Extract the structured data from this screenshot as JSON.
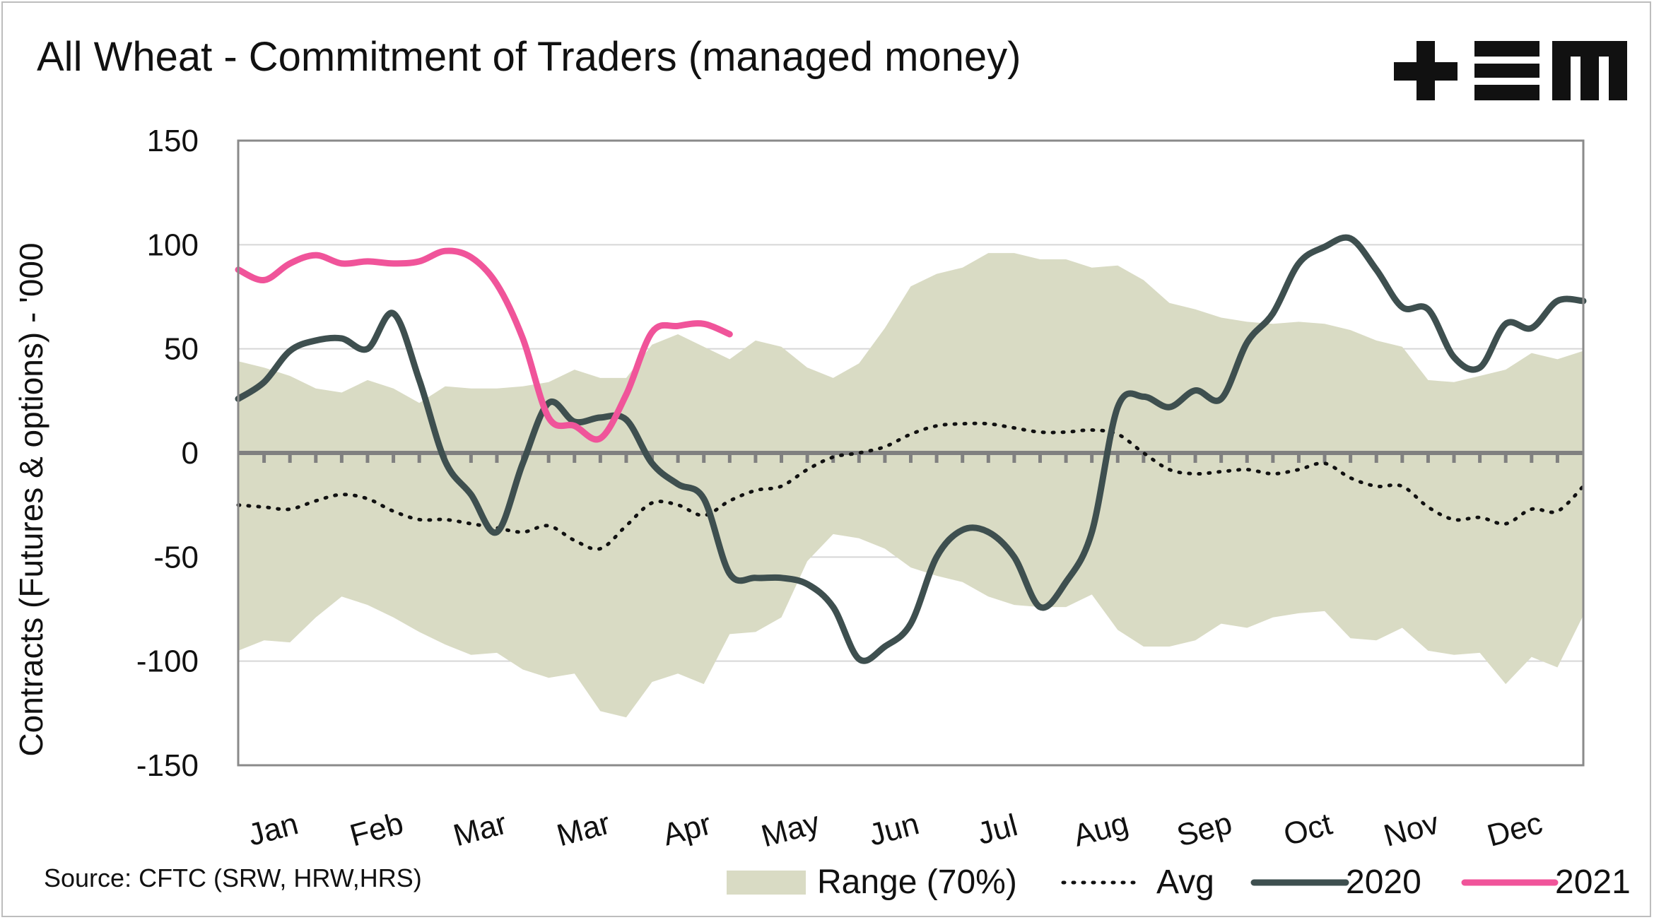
{
  "chart_data": {
    "type": "line",
    "title": "All Wheat - Commitment of Traders (managed money)",
    "ylabel": "Contracts (Futures & options) - '000",
    "xlabel": "",
    "source": "Source: CFTC (SRW, HRW,HRS)",
    "logo": "+EM",
    "ylim": [
      -150,
      150
    ],
    "yticks": [
      150,
      100,
      50,
      0,
      -50,
      -100,
      -150
    ],
    "xlim": [
      0,
      52
    ],
    "categories": [
      "Jan",
      "Feb",
      "Mar",
      "Mar",
      "Apr",
      "May",
      "Jun",
      "Jul",
      "Aug",
      "Sep",
      "Oct",
      "Nov",
      "Dec"
    ],
    "grid": true,
    "legend_position": "bottom",
    "colors": {
      "range": "#d9dbc4",
      "avg": "#111111",
      "y2020": "#3e4f4f",
      "y2021": "#f0549a",
      "zero_line": "#808080",
      "grid": "#d6d6d6"
    },
    "series": [
      {
        "name": "Range (70%)",
        "kind": "band",
        "x": [
          0,
          1,
          2,
          3,
          4,
          5,
          6,
          7,
          8,
          9,
          10,
          11,
          12,
          13,
          14,
          15,
          16,
          17,
          18,
          19,
          20,
          21,
          22,
          23,
          24,
          25,
          26,
          27,
          28,
          29,
          30,
          31,
          32,
          33,
          34,
          35,
          36,
          37,
          38,
          39,
          40,
          41,
          42,
          43,
          44,
          45,
          46,
          47,
          48,
          49,
          50,
          51,
          52
        ],
        "upper": [
          44,
          41,
          37,
          31,
          29,
          35,
          31,
          24,
          32,
          31,
          31,
          32,
          34,
          40,
          36,
          36,
          52,
          57,
          51,
          45,
          54,
          51,
          41,
          36,
          43,
          60,
          80,
          86,
          89,
          96,
          96,
          93,
          93,
          89,
          90,
          83,
          72,
          69,
          65,
          63,
          62,
          63,
          62,
          59,
          54,
          51,
          35,
          34,
          37,
          40,
          48,
          45,
          49
        ],
        "lower": [
          -95,
          -90,
          -91,
          -79,
          -69,
          -73,
          -79,
          -86,
          -92,
          -97,
          -96,
          -104,
          -108,
          -106,
          -124,
          -127,
          -110,
          -106,
          -111,
          -87,
          -86,
          -79,
          -52,
          -39,
          -41,
          -46,
          -55,
          -59,
          -62,
          -69,
          -73,
          -74,
          -74,
          -68,
          -85,
          -93,
          -93,
          -90,
          -82,
          -84,
          -79,
          -77,
          -76,
          -89,
          -90,
          -84,
          -95,
          -97,
          -96,
          -111,
          -98,
          -103,
          -78
        ]
      },
      {
        "name": "Avg",
        "kind": "dotted",
        "x": [
          0,
          1,
          2,
          3,
          4,
          5,
          6,
          7,
          8,
          9,
          10,
          11,
          12,
          13,
          14,
          15,
          16,
          17,
          18,
          19,
          20,
          21,
          22,
          23,
          24,
          25,
          26,
          27,
          28,
          29,
          30,
          31,
          32,
          33,
          34,
          35,
          36,
          37,
          38,
          39,
          40,
          41,
          42,
          43,
          44,
          45,
          46,
          47,
          48,
          49,
          50,
          51,
          52
        ],
        "values": [
          -25,
          -26,
          -27,
          -23,
          -20,
          -22,
          -28,
          -32,
          -32,
          -34,
          -36,
          -38,
          -35,
          -42,
          -46,
          -35,
          -24,
          -25,
          -30,
          -23,
          -18,
          -16,
          -8,
          -2,
          0,
          3,
          9,
          13,
          14,
          14,
          12,
          10,
          10,
          11,
          9,
          0,
          -8,
          -10,
          -9,
          -8,
          -10,
          -8,
          -5,
          -12,
          -16,
          -16,
          -26,
          -32,
          -31,
          -34,
          -27,
          -28,
          -16
        ]
      },
      {
        "name": "2020",
        "kind": "line",
        "x": [
          0,
          1,
          2,
          3,
          4,
          5,
          6,
          7,
          8,
          9,
          10,
          11,
          12,
          13,
          14,
          15,
          16,
          17,
          18,
          19,
          20,
          21,
          22,
          23,
          24,
          25,
          26,
          27,
          28,
          29,
          30,
          31,
          32,
          33,
          34,
          35,
          36,
          37,
          38,
          39,
          40,
          41,
          42,
          43,
          44,
          45,
          46,
          47,
          48,
          49,
          50,
          51,
          52
        ],
        "values": [
          26,
          34,
          49,
          54,
          55,
          50,
          67,
          35,
          -4,
          -20,
          -38,
          -5,
          24,
          15,
          17,
          16,
          -5,
          -15,
          -22,
          -58,
          -60,
          -60,
          -63,
          -74,
          -99,
          -93,
          -82,
          -50,
          -37,
          -38,
          -50,
          -74,
          -62,
          -38,
          22,
          27,
          22,
          30,
          26,
          53,
          67,
          91,
          99,
          103,
          88,
          70,
          69,
          46,
          41,
          62,
          60,
          73,
          73
        ]
      },
      {
        "name": "2021",
        "kind": "line",
        "x": [
          0,
          1,
          2,
          3,
          4,
          5,
          6,
          7,
          8,
          9,
          10,
          11,
          12,
          13,
          14,
          15,
          16,
          17,
          18,
          19
        ],
        "values": [
          88,
          83,
          91,
          95,
          91,
          92,
          91,
          92,
          97,
          94,
          81,
          55,
          17,
          13,
          7,
          28,
          58,
          61,
          62,
          57
        ]
      }
    ]
  }
}
